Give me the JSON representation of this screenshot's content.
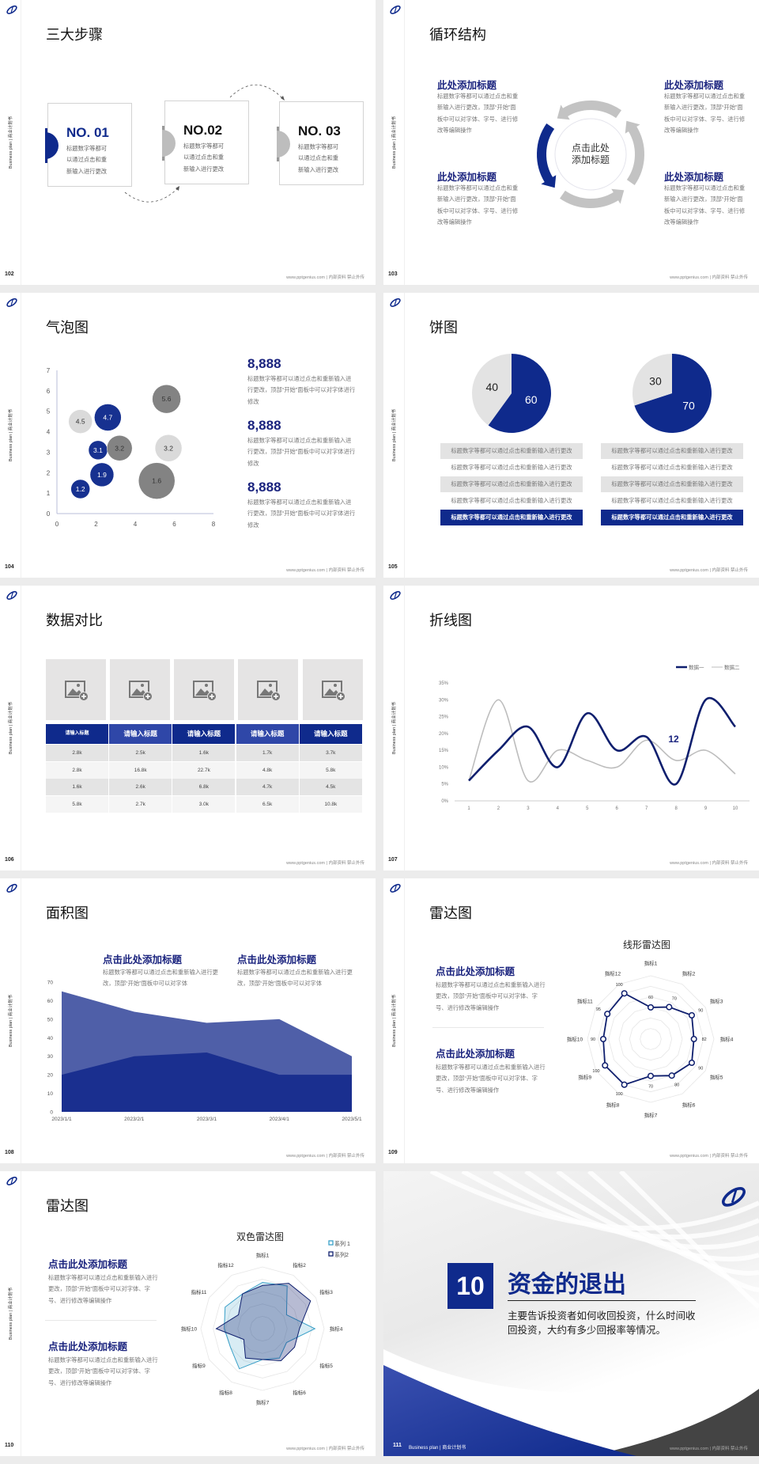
{
  "common": {
    "sidebar": "Business plan | 商业计划书",
    "footer": "www.pptgenius.com | 内部资料 禁止外传"
  },
  "colors": {
    "brand_blue": "#0f2a8c",
    "heading_blue": "#1a237e",
    "mid_blue": "#2f47a8",
    "light_gray": "#d9d9d9",
    "dark_gray": "#7f7f7f",
    "accent_cyan": "#3aa0c8"
  },
  "slides": {
    "s102": {
      "page": "102",
      "title": "三大步骤",
      "steps": [
        {
          "number": "NO. 01",
          "text": "标题数字等都可以通过点击和重新输入进行更改"
        },
        {
          "number": "NO.02",
          "text": "标题数字等都可以通过点击和重新输入进行更改"
        },
        {
          "number": "NO. 03",
          "text": "标题数字等都可以通过点击和重新输入进行更改"
        }
      ]
    },
    "s103": {
      "page": "103",
      "title": "循环结构",
      "center": "点击此处添加标题",
      "blocks": [
        {
          "heading": "此处添加标题",
          "text": "标题数字等都可以通过点击和重新输入进行更改，顶部“开始”面板中可以对字体、字号、进行修改等编辑操作"
        },
        {
          "heading": "此处添加标题",
          "text": "标题数字等都可以通过点击和重新输入进行更改，顶部“开始”面板中可以对字体、字号、进行修改等编辑操作"
        },
        {
          "heading": "此处添加标题",
          "text": "标题数字等都可以通过点击和重新输入进行更改，顶部“开始”面板中可以对字体、字号、进行修改等编辑操作"
        },
        {
          "heading": "此处添加标题",
          "text": "标题数字等都可以通过点击和重新输入进行更改，顶部“开始”面板中可以对字体、字号、进行修改等编辑操作"
        }
      ]
    },
    "s104": {
      "page": "104",
      "title": "气泡图",
      "stats": [
        {
          "value": "8,888",
          "text": "标题数字等都可以通过点击和重新输入进行更改，顶部“开始”面板中可以对字体进行修改"
        },
        {
          "value": "8,888",
          "text": "标题数字等都可以通过点击和重新输入进行更改，顶部“开始”面板中可以对字体进行修改"
        },
        {
          "value": "8,888",
          "text": "标题数字等都可以通过点击和重新输入进行更改，顶部“开始”面板中可以对字体进行修改"
        }
      ]
    },
    "s105": {
      "page": "105",
      "title": "饼图",
      "left_rows": [
        "标题数字等都可以通过点击和重新输入进行更改",
        "标题数字等都可以通过点击和重新输入进行更改",
        "标题数字等都可以通过点击和重新输入进行更改",
        "标题数字等都可以通过点击和重新输入进行更改",
        "标题数字等都可以通过点击和重新输入进行更改"
      ],
      "right_rows": [
        "标题数字等都可以通过点击和重新输入进行更改",
        "标题数字等都可以通过点击和重新输入进行更改",
        "标题数字等都可以通过点击和重新输入进行更改",
        "标题数字等都可以通过点击和重新输入进行更改",
        "标题数字等都可以通过点击和重新输入进行更改"
      ]
    },
    "s106": {
      "page": "106",
      "title": "数据对比",
      "image_placeholder_icon": "image-add-icon",
      "table": {
        "headers": [
          "请输入标题",
          "请输入标题",
          "请输入标题",
          "请输入标题",
          "请输入标题"
        ],
        "rows": [
          [
            "2.8k",
            "2.5k",
            "1.6k",
            "1.7k",
            "3.7k"
          ],
          [
            "2.8k",
            "16.8k",
            "22.7k",
            "4.8k",
            "5.8k"
          ],
          [
            "1.6k",
            "2.6k",
            "6.8k",
            "4.7k",
            "4.5k"
          ],
          [
            "5.8k",
            "2.7k",
            "3.0k",
            "6.5k",
            "10.8k"
          ]
        ]
      }
    },
    "s107": {
      "page": "107",
      "title": "折线图"
    },
    "s108": {
      "page": "108",
      "title": "面积图",
      "blocks": [
        {
          "heading": "点击此处添加标题",
          "text": "标题数字等都可以通过点击和重新输入进行更改，顶部“开始”面板中可以对字体"
        },
        {
          "heading": "点击此处添加标题",
          "text": "标题数字等都可以通过点击和重新输入进行更改，顶部“开始”面板中可以对字体"
        }
      ]
    },
    "s109": {
      "page": "109",
      "title": "雷达图",
      "blocks": [
        {
          "heading": "点击此处添加标题",
          "text": "标题数字等都可以通过点击和重新输入进行更改，顶部“开始”面板中可以对字体、字号、进行修改等编辑操作"
        },
        {
          "heading": "点击此处添加标题",
          "text": "标题数字等都可以通过点击和重新输入进行更改，顶部“开始”面板中可以对字体、字号、进行修改等编辑操作"
        }
      ]
    },
    "s110": {
      "page": "110",
      "title": "雷达图",
      "blocks": [
        {
          "heading": "点击此处添加标题",
          "text": "标题数字等都可以通过点击和重新输入进行更改，顶部“开始”面板中可以对字体、字号、进行修改等编辑操作"
        },
        {
          "heading": "点击此处添加标题",
          "text": "标题数字等都可以通过点击和重新输入进行更改，顶部“开始”面板中可以对字体、字号、进行修改等编辑操作"
        }
      ]
    },
    "s111": {
      "page": "111",
      "section_number": "10",
      "section_title": "资金的退出",
      "description": "主要告诉投资者如何收回投资，什么时间收回投资，大约有多少回报率等情况。",
      "footer_label": "Business plan | 商业计划书"
    }
  },
  "chart_data": [
    {
      "type": "scatter",
      "variant": "bubble",
      "xlim": [
        0,
        8
      ],
      "ylim": [
        0,
        7
      ],
      "xticks": [
        "0",
        "2",
        "4",
        "6",
        "8"
      ],
      "yticks": [
        "0",
        "1",
        "2",
        "3",
        "4",
        "5",
        "6",
        "7"
      ],
      "grid": false,
      "points": [
        {
          "x": 1.2,
          "y": 1.2,
          "size": 1.2,
          "label": "1.2",
          "color": "#0f2a8c"
        },
        {
          "x": 2.3,
          "y": 1.9,
          "size": 1.5,
          "label": "1.9",
          "color": "#0f2a8c"
        },
        {
          "x": 2.1,
          "y": 3.1,
          "size": 1.2,
          "label": "3.1",
          "color": "#0f2a8c"
        },
        {
          "x": 3.2,
          "y": 3.2,
          "size": 1.6,
          "label": "3.2",
          "color": "#7f7f7f"
        },
        {
          "x": 2.6,
          "y": 4.7,
          "size": 1.7,
          "label": "4.7",
          "color": "#0f2a8c"
        },
        {
          "x": 1.2,
          "y": 4.5,
          "size": 1.5,
          "label": "4.5",
          "color": "#d9d9d9"
        },
        {
          "x": 5.6,
          "y": 5.6,
          "size": 1.8,
          "label": "5.6",
          "color": "#7f7f7f"
        },
        {
          "x": 5.7,
          "y": 3.2,
          "size": 1.7,
          "label": "3.2",
          "color": "#d9d9d9"
        },
        {
          "x": 5.1,
          "y": 1.6,
          "size": 2.3,
          "label": "1.6",
          "color": "#7f7f7f"
        }
      ]
    },
    {
      "type": "pie",
      "values": [
        60,
        40
      ],
      "labels": [
        "60",
        "40"
      ],
      "colors": [
        "#0f2a8c",
        "#e3e3e3"
      ]
    },
    {
      "type": "pie",
      "values": [
        70,
        30
      ],
      "labels": [
        "70",
        "30"
      ],
      "colors": [
        "#0f2a8c",
        "#e3e3e3"
      ]
    },
    {
      "type": "line",
      "smooth": true,
      "categories": [
        "1",
        "2",
        "3",
        "4",
        "5",
        "6",
        "7",
        "8",
        "9",
        "10"
      ],
      "ylim": [
        0,
        35
      ],
      "yticks": [
        "0%",
        "5%",
        "10%",
        "15%",
        "20%",
        "25%",
        "30%",
        "35%"
      ],
      "legend": "top-right",
      "annotation": "12",
      "series": [
        {
          "name": "数据一",
          "color": "#0f1f6e",
          "values": [
            6,
            15,
            22,
            10,
            26,
            15,
            19,
            5,
            30,
            22
          ]
        },
        {
          "name": "数据二",
          "color": "#bdbdbd",
          "values": [
            6,
            30,
            6,
            15,
            12,
            10,
            18,
            12,
            15,
            8
          ]
        }
      ]
    },
    {
      "type": "area",
      "categories": [
        "2023/1/1",
        "2023/2/1",
        "2023/3/1",
        "2023/4/1",
        "2023/5/1"
      ],
      "ylim": [
        0,
        70
      ],
      "yticks": [
        "0",
        "10",
        "20",
        "30",
        "40",
        "50",
        "60",
        "70"
      ],
      "series": [
        {
          "color": "#4f5fa8",
          "values": [
            65,
            54,
            48,
            50,
            30
          ]
        },
        {
          "color": "#1a2f8f",
          "values": [
            20,
            30,
            32,
            20,
            20
          ]
        }
      ]
    },
    {
      "type": "radar",
      "title": "线形雷达图",
      "axes": [
        "指标1",
        "指标2",
        "指标3",
        "指标4",
        "指标5",
        "指标6",
        "指标7",
        "指标8",
        "指标9",
        "指标10",
        "指标11",
        "指标12"
      ],
      "rmax": 120,
      "series": [
        {
          "color": "#0f1f6e",
          "values": [
            60,
            70,
            90,
            82,
            90,
            80,
            70,
            100,
            100,
            90,
            95,
            100
          ],
          "labels": [
            "60",
            "70",
            "90",
            "82",
            "90",
            "80",
            "70",
            "100",
            "100",
            "90",
            "95",
            "100"
          ]
        }
      ]
    },
    {
      "type": "radar",
      "title": "双色雷达图",
      "axes": [
        "指标1",
        "指标2",
        "指标3",
        "指标4",
        "指标5",
        "指标6",
        "指标7",
        "指标8",
        "指标9",
        "指标10",
        "指标11",
        "指标12"
      ],
      "rmax": 100,
      "legend": "top-right",
      "series": [
        {
          "name": "系列 1",
          "color": "#3aa0c8",
          "values": [
            75,
            80,
            45,
            85,
            45,
            55,
            50,
            75,
            60,
            62,
            70,
            65
          ]
        },
        {
          "name": "系列2",
          "color": "#0f1f6e",
          "values": [
            70,
            85,
            90,
            60,
            60,
            60,
            50,
            55,
            35,
            75,
            45,
            65
          ]
        }
      ]
    }
  ]
}
